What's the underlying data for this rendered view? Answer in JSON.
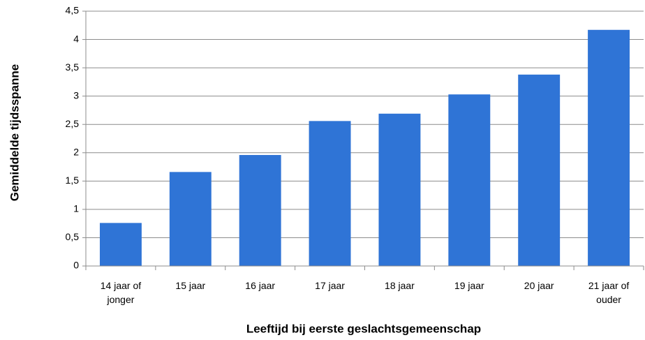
{
  "chart_data": {
    "type": "bar",
    "x_label": "Leeftijd bij eerste geslachtsgemeenschap",
    "y_label": "Gemiddelde tijdsspanne",
    "categories": [
      "14 jaar of jonger",
      "15 jaar",
      "16 jaar",
      "17 jaar",
      "18 jaar",
      "19 jaar",
      "20 jaar",
      "21 jaar of ouder"
    ],
    "values": [
      0.76,
      1.66,
      1.96,
      2.56,
      2.69,
      3.03,
      3.38,
      4.17
    ],
    "color": "#2f74d6",
    "ylim": [
      0,
      4.5
    ],
    "yticks": [
      0,
      {
        "value": 0.5,
        "label": "0,5"
      },
      1,
      {
        "value": 1.5,
        "label": "1,5"
      },
      2,
      {
        "value": 2.5,
        "label": "2,5"
      },
      3,
      {
        "value": 3.5,
        "label": "3,5"
      },
      4,
      {
        "value": 4.5,
        "label": "4,5"
      }
    ],
    "grid": true
  }
}
